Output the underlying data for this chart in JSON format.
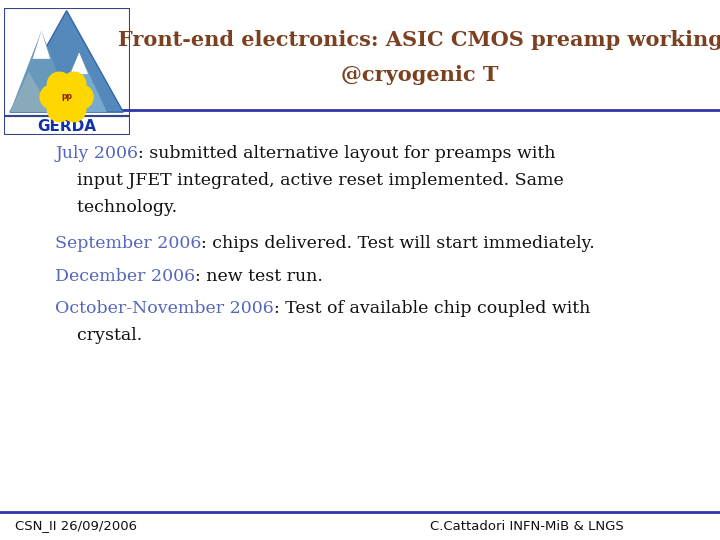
{
  "title_line1": "Front-end electronics: ASIC CMOS preamp working",
  "title_line2": "@cryogenic T",
  "title_color": "#7B4020",
  "title_fontsize": 15,
  "bg_color": "#FFFFFF",
  "divider_color": "#3333AA",
  "bullet_label_color": "#5566BB",
  "bullet_text_color": "#111111",
  "bullet_fontsize": 12.5,
  "bullets": [
    {
      "label": "July 2006",
      "rest": ": submitted alternative layout for preamps with"
    },
    {
      "label": "",
      "rest": "    input JFET integrated, active reset implemented. Same"
    },
    {
      "label": "",
      "rest": "    technology."
    },
    {
      "label": "September 2006",
      "rest": ": chips delivered. Test will start immediately."
    },
    {
      "label": "December 2006",
      "rest": ": new test run."
    },
    {
      "label": "October-November 2006",
      "rest": ": Test of available chip coupled with"
    },
    {
      "label": "",
      "rest": "    crystal."
    }
  ],
  "footer_left": "CSN_II 26/09/2006",
  "footer_right": "C.Cattadori INFN-MiB & LNGS",
  "footer_color": "#111111",
  "footer_fontsize": 9.5,
  "logo_text": "GERDA",
  "logo_text_color": "#1133AA"
}
